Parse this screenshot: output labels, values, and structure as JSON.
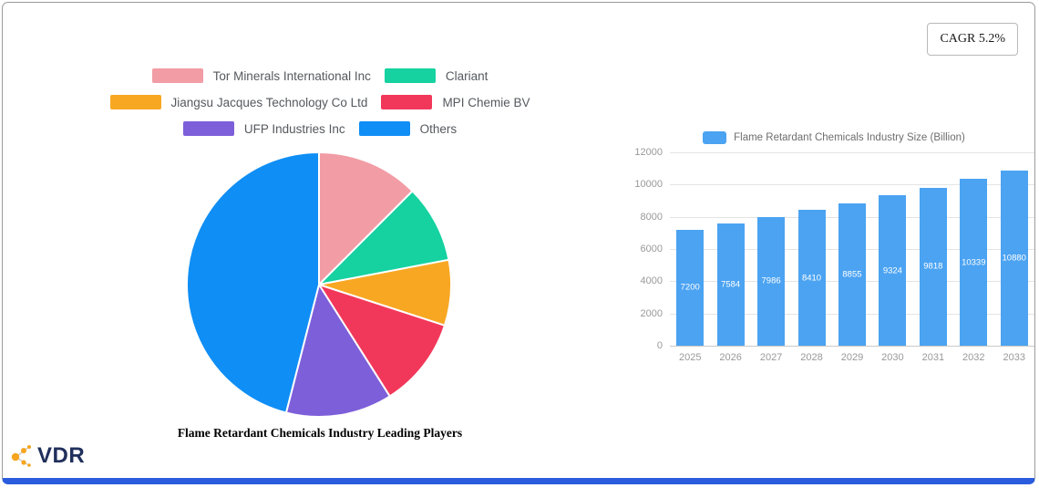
{
  "badge": {
    "cagr": "CAGR 5.2%"
  },
  "logo": {
    "text": "VDR",
    "icon": "network-dots-icon"
  },
  "chart_data": [
    {
      "type": "pie",
      "title": "Flame Retardant Chemicals Industry Leading Players",
      "legend_position": "top",
      "labels": [
        "Tor Minerals International Inc",
        "Clariant",
        "Jiangsu Jacques Technology Co  Ltd",
        "MPI Chemie BV",
        "UFP Industries Inc",
        "Others"
      ],
      "values": [
        12.5,
        9.5,
        8,
        11,
        13,
        46
      ],
      "colors": [
        "#f29ca5",
        "#15d2a0",
        "#f8a723",
        "#f2385a",
        "#7d5fd9",
        "#0f8ef5"
      ]
    },
    {
      "type": "bar",
      "legend": "Flame Retardant Chemicals Industry Size (Billion)",
      "categories": [
        "2025",
        "2026",
        "2027",
        "2028",
        "2029",
        "2030",
        "2031",
        "2032",
        "2033"
      ],
      "values": [
        7200,
        7584,
        7986,
        8410,
        8855,
        9324,
        9818,
        10339,
        10880
      ],
      "ylim": [
        0,
        12000
      ],
      "yticks": [
        0,
        2000,
        4000,
        6000,
        8000,
        10000,
        12000
      ],
      "bar_color": "#4ba3f2",
      "value_label_color": "#ffffff",
      "grid_color": "#e4e4e4",
      "tick_label_color": "#999999",
      "legend_text_color": "#6e6e6e"
    }
  ]
}
